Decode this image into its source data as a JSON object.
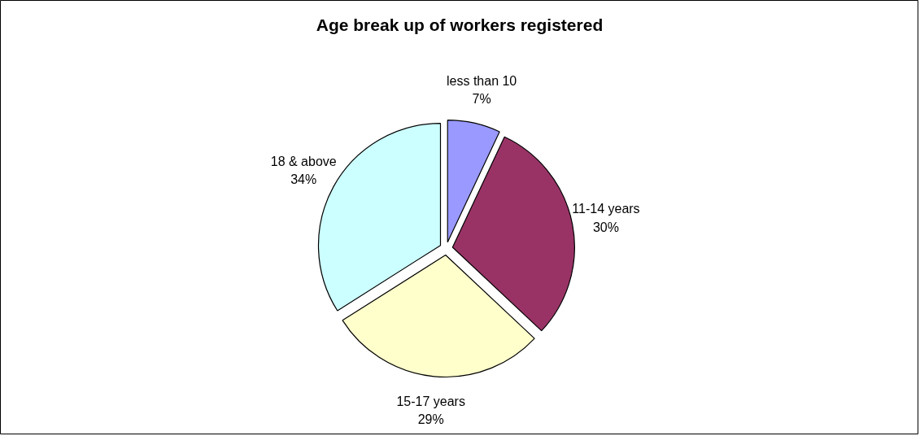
{
  "chart_data": {
    "type": "pie",
    "title": "Age break up of workers registered",
    "categories": [
      "less than 10",
      "11-14 years",
      "15-17 years",
      "18 & above"
    ],
    "values": [
      7,
      30,
      29,
      34
    ],
    "value_labels": [
      "7%",
      "30%",
      "29%",
      "34%"
    ],
    "colors": [
      "#9999ff",
      "#993366",
      "#ffffcc",
      "#ccffff"
    ]
  }
}
